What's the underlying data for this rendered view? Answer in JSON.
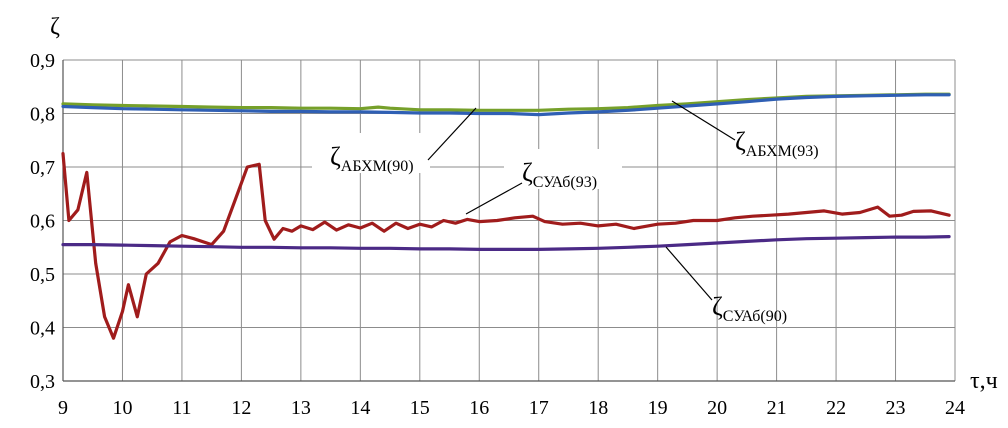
{
  "chart_data": {
    "type": "line",
    "xlabel": "τ,ч",
    "ylabel": "ζ",
    "xlim": [
      9,
      24
    ],
    "ylim": [
      0.3,
      0.9
    ],
    "grid": true,
    "x_ticks": [
      "9",
      "10",
      "11",
      "12",
      "13",
      "14",
      "15",
      "16",
      "17",
      "18",
      "19",
      "20",
      "21",
      "22",
      "23",
      "24"
    ],
    "y_ticks": [
      "0,3",
      "0,4",
      "0,5",
      "0,6",
      "0,7",
      "0,8",
      "0,9"
    ],
    "series": [
      {
        "label_main": "ζ",
        "label_sub": "АБХМ(93)",
        "color": "#76a02a",
        "x": [
          9,
          9.5,
          10,
          10.5,
          11,
          11.5,
          12,
          12.5,
          13,
          13.5,
          14,
          14.3,
          14.5,
          15,
          15.5,
          16,
          16.5,
          17,
          17.5,
          18,
          18.5,
          19,
          19.5,
          20,
          20.5,
          21,
          21.5,
          22,
          22.5,
          23,
          23.5,
          23.9
        ],
        "y": [
          0.818,
          0.816,
          0.815,
          0.814,
          0.813,
          0.812,
          0.811,
          0.811,
          0.81,
          0.81,
          0.809,
          0.812,
          0.81,
          0.807,
          0.807,
          0.806,
          0.806,
          0.806,
          0.808,
          0.809,
          0.811,
          0.815,
          0.818,
          0.822,
          0.826,
          0.829,
          0.832,
          0.833,
          0.834,
          0.835,
          0.836,
          0.836
        ]
      },
      {
        "label_main": "ζ",
        "label_sub": "АБХМ(90)",
        "color": "#2f5fb4",
        "x": [
          9,
          9.5,
          10,
          10.5,
          11,
          11.5,
          12,
          12.5,
          13,
          13.5,
          14,
          14.5,
          15,
          15.5,
          16,
          16.5,
          17,
          17.5,
          18,
          18.5,
          19,
          19.5,
          20,
          20.5,
          21,
          21.5,
          22,
          22.5,
          23,
          23.5,
          23.9
        ],
        "y": [
          0.813,
          0.811,
          0.809,
          0.808,
          0.807,
          0.806,
          0.805,
          0.804,
          0.804,
          0.803,
          0.803,
          0.802,
          0.801,
          0.801,
          0.8,
          0.8,
          0.798,
          0.801,
          0.803,
          0.806,
          0.81,
          0.814,
          0.818,
          0.822,
          0.827,
          0.83,
          0.832,
          0.833,
          0.834,
          0.835,
          0.835
        ]
      },
      {
        "label_main": "ζ",
        "label_sub": "СУАб(93)",
        "color": "#a01c1c",
        "x": [
          9,
          9.1,
          9.25,
          9.4,
          9.55,
          9.7,
          9.85,
          10,
          10.1,
          10.25,
          10.4,
          10.6,
          10.8,
          11,
          11.2,
          11.5,
          11.7,
          11.9,
          12.1,
          12.3,
          12.4,
          12.55,
          12.7,
          12.85,
          13,
          13.2,
          13.4,
          13.6,
          13.8,
          14,
          14.2,
          14.4,
          14.6,
          14.8,
          15,
          15.2,
          15.4,
          15.6,
          15.8,
          16,
          16.3,
          16.6,
          16.9,
          17.1,
          17.4,
          17.7,
          18,
          18.3,
          18.6,
          19,
          19.3,
          19.6,
          20,
          20.3,
          20.6,
          20.9,
          21.2,
          21.5,
          21.8,
          22.1,
          22.4,
          22.7,
          22.9,
          23.1,
          23.3,
          23.6,
          23.9
        ],
        "y": [
          0.725,
          0.6,
          0.62,
          0.69,
          0.52,
          0.42,
          0.38,
          0.43,
          0.48,
          0.42,
          0.5,
          0.52,
          0.56,
          0.572,
          0.566,
          0.555,
          0.58,
          0.64,
          0.7,
          0.705,
          0.6,
          0.565,
          0.585,
          0.58,
          0.59,
          0.583,
          0.597,
          0.582,
          0.592,
          0.586,
          0.595,
          0.58,
          0.595,
          0.585,
          0.593,
          0.588,
          0.6,
          0.595,
          0.602,
          0.598,
          0.6,
          0.605,
          0.608,
          0.598,
          0.593,
          0.595,
          0.59,
          0.593,
          0.585,
          0.593,
          0.595,
          0.6,
          0.6,
          0.605,
          0.608,
          0.61,
          0.612,
          0.615,
          0.618,
          0.612,
          0.615,
          0.625,
          0.608,
          0.61,
          0.617,
          0.618,
          0.61
        ]
      },
      {
        "label_main": "ζ",
        "label_sub": "СУАб(90)",
        "color": "#4b2a86",
        "x": [
          9,
          9.5,
          10,
          10.5,
          11,
          11.5,
          12,
          12.5,
          13,
          13.5,
          14,
          14.5,
          15,
          15.5,
          16,
          16.5,
          17,
          17.5,
          18,
          18.5,
          19,
          19.5,
          20,
          20.5,
          21,
          21.5,
          22,
          22.5,
          23,
          23.5,
          23.9
        ],
        "y": [
          0.555,
          0.555,
          0.554,
          0.553,
          0.552,
          0.551,
          0.55,
          0.55,
          0.549,
          0.549,
          0.548,
          0.548,
          0.547,
          0.547,
          0.546,
          0.546,
          0.546,
          0.547,
          0.548,
          0.55,
          0.552,
          0.555,
          0.558,
          0.561,
          0.564,
          0.566,
          0.567,
          0.568,
          0.569,
          0.569,
          0.57
        ]
      }
    ]
  }
}
